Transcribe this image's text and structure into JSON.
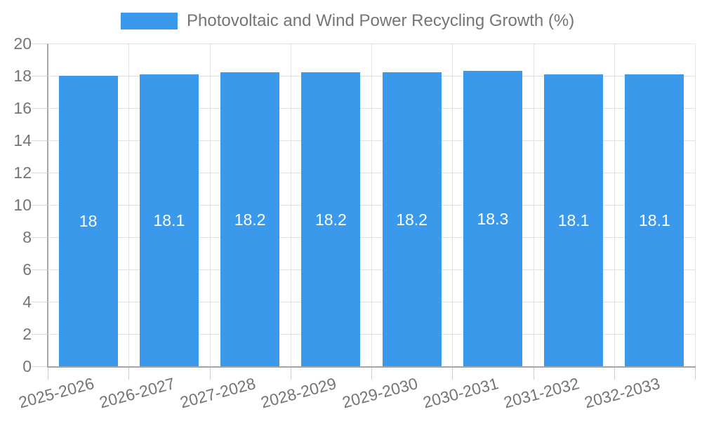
{
  "legend": {
    "label": "Photovoltaic and Wind Power Recycling Growth (%)",
    "swatch_color": "#3b99ec"
  },
  "chart_data": {
    "type": "bar",
    "title": "Photovoltaic and Wind Power Recycling Growth (%)",
    "categories": [
      "2025-2026",
      "2026-2027",
      "2027-2028",
      "2028-2029",
      "2029-2030",
      "2030-2031",
      "2031-2032",
      "2032-2033"
    ],
    "values": [
      18,
      18.1,
      18.2,
      18.2,
      18.2,
      18.3,
      18.1,
      18.1
    ],
    "value_labels": [
      "18",
      "18.1",
      "18.2",
      "18.2",
      "18.2",
      "18.3",
      "18.1",
      "18.1"
    ],
    "xlabel": "",
    "ylabel": "",
    "ylim": [
      0,
      20
    ],
    "ytick_step": 2,
    "ytick_labels": [
      "0",
      "2",
      "4",
      "6",
      "8",
      "10",
      "12",
      "14",
      "16",
      "18",
      "20"
    ],
    "grid": true,
    "legend_position": "top",
    "bar_color": "#3b99ec",
    "value_label_color": "#ffffff",
    "axis_text_color": "#757575"
  },
  "colors": {
    "bar": "#3b99ec",
    "axis_line": "#a6a6a6",
    "gridline": "#e2e2e2",
    "tick": "#d9d9d9",
    "text": "#757575",
    "background": "#ffffff"
  }
}
